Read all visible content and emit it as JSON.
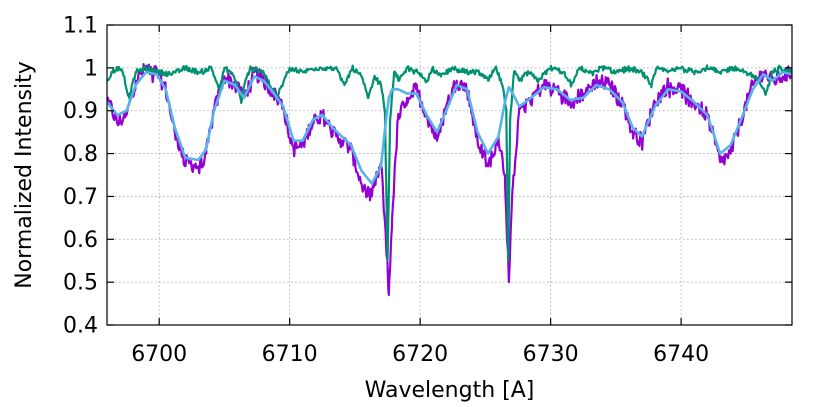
{
  "chart_data": {
    "type": "line",
    "xlabel": "Wavelength [A]",
    "ylabel": "Normalized Intensity",
    "xlim": [
      6696,
      6748.5
    ],
    "ylim": [
      0.4,
      1.1
    ],
    "x_ticks": [
      6700,
      6710,
      6720,
      6730,
      6740
    ],
    "y_ticks": [
      0.4,
      0.5,
      0.6,
      0.7,
      0.8,
      0.9,
      1,
      1.1
    ],
    "y_tick_labels": [
      "0.4",
      "0.5",
      "0.6",
      "0.7",
      "0.8",
      "0.9",
      "1",
      "1.1"
    ],
    "grid": true,
    "legend": "none",
    "series": [
      {
        "color": "#9400d3",
        "width": 2.2,
        "noise": 0.018,
        "x": [
          6696,
          6696.8,
          6697.5,
          6698.2,
          6699,
          6699.8,
          6700.5,
          6701.2,
          6702,
          6703,
          6703.6,
          6704.2,
          6705,
          6705.8,
          6706.5,
          6707.3,
          6708,
          6708.8,
          6709.5,
          6710.3,
          6711,
          6711.8,
          6712.5,
          6713.3,
          6714,
          6714.7,
          6715.5,
          6716.3,
          6717,
          6717.35,
          6717.6,
          6717.85,
          6718.3,
          6719,
          6719.7,
          6720.5,
          6721.3,
          6722,
          6722.8,
          6723.6,
          6724.4,
          6725.2,
          6726,
          6726.5,
          6726.8,
          6727.1,
          6727.6,
          6728.5,
          6729.5,
          6730.5,
          6731.5,
          6732.5,
          6733.5,
          6734.5,
          6735.5,
          6736.3,
          6737,
          6738,
          6739,
          6740,
          6741,
          6742,
          6743,
          6743.8,
          6744.6,
          6745.5,
          6746.3,
          6747,
          6747.8,
          6748.5
        ],
        "y": [
          0.93,
          0.87,
          0.89,
          0.97,
          1.0,
          0.99,
          0.95,
          0.85,
          0.78,
          0.77,
          0.8,
          0.9,
          0.98,
          0.96,
          0.93,
          0.99,
          0.97,
          0.94,
          0.91,
          0.81,
          0.82,
          0.88,
          0.89,
          0.85,
          0.83,
          0.81,
          0.73,
          0.7,
          0.78,
          0.62,
          0.47,
          0.65,
          0.88,
          0.93,
          0.95,
          0.89,
          0.83,
          0.91,
          0.97,
          0.95,
          0.83,
          0.77,
          0.84,
          0.75,
          0.5,
          0.72,
          0.91,
          0.93,
          0.96,
          0.95,
          0.92,
          0.94,
          0.97,
          0.96,
          0.92,
          0.85,
          0.83,
          0.92,
          0.96,
          0.95,
          0.92,
          0.89,
          0.78,
          0.8,
          0.88,
          0.96,
          0.99,
          0.97,
          0.98,
          0.99
        ]
      },
      {
        "color": "#009270",
        "width": 2.2,
        "noise": 0.006,
        "x": [
          6696,
          6696.4,
          6696.8,
          6697.2,
          6697.7,
          6698.2,
          6699,
          6700,
          6701,
          6702,
          6703,
          6704,
          6704.6,
          6705,
          6705.5,
          6706,
          6706.3,
          6706.6,
          6707,
          6708,
          6709,
          6710,
          6711,
          6712,
          6713.5,
          6714.2,
          6714.8,
          6715.5,
          6716,
          6716.5,
          6717,
          6717.3,
          6717.5,
          6717.7,
          6718,
          6718.4,
          6719,
          6719.8,
          6720.5,
          6721,
          6721.6,
          6722.5,
          6723.5,
          6724.5,
          6725.2,
          6725.8,
          6726.3,
          6726.6,
          6726.75,
          6726.9,
          6727.2,
          6727.6,
          6728.3,
          6729,
          6730,
          6731,
          6731.6,
          6732.2,
          6733,
          6734,
          6735,
          6736,
          6737,
          6737.7,
          6738.2,
          6739,
          6740,
          6741,
          6742,
          6743,
          6744,
          6745,
          6746,
          6746.5,
          6747,
          6747.5,
          6748,
          6748.5
        ],
        "y": [
          0.97,
          0.99,
          1.0,
          0.99,
          0.93,
          0.99,
          1.0,
          0.99,
          0.985,
          1.0,
          0.99,
          1.0,
          0.95,
          1.0,
          0.99,
          0.96,
          0.92,
          0.97,
          1.0,
          0.99,
          0.93,
          1.0,
          0.99,
          1.0,
          1.0,
          0.96,
          1.0,
          0.98,
          0.93,
          0.98,
          0.96,
          0.9,
          0.55,
          0.88,
          0.99,
          0.97,
          1.0,
          0.99,
          0.97,
          1.0,
          0.98,
          1.0,
          0.99,
          0.99,
          0.97,
          1.0,
          0.96,
          0.9,
          0.55,
          0.88,
          0.99,
          0.97,
          0.99,
          0.97,
          1.0,
          0.99,
          0.96,
          1.0,
          0.99,
          1.0,
          0.99,
          1.0,
          0.99,
          0.96,
          1.0,
          0.99,
          1.0,
          0.99,
          1.0,
          0.99,
          1.0,
          0.99,
          0.97,
          0.94,
          0.99,
          1.0,
          0.99,
          1.0
        ]
      },
      {
        "color": "#56b4e9",
        "width": 2.6,
        "noise": 0,
        "x": [
          6696,
          6696.8,
          6697.5,
          6698.2,
          6699,
          6699.8,
          6700.5,
          6701.2,
          6702,
          6703,
          6703.6,
          6704.2,
          6705,
          6705.8,
          6706.5,
          6707.3,
          6708,
          6708.8,
          6709.5,
          6710.3,
          6711,
          6711.8,
          6712.5,
          6713.3,
          6714,
          6714.7,
          6715.5,
          6716.3,
          6717,
          6717.35,
          6717.6,
          6717.85,
          6718.3,
          6719,
          6719.7,
          6720.5,
          6721.3,
          6722,
          6722.8,
          6723.6,
          6724.4,
          6725.2,
          6726,
          6726.5,
          6726.8,
          6727.1,
          6727.6,
          6728.5,
          6729.5,
          6730.5,
          6731.5,
          6732.5,
          6733.5,
          6734.5,
          6735.5,
          6736.3,
          6737,
          6738,
          6739,
          6740,
          6741,
          6742,
          6743,
          6743.8,
          6744.6,
          6745.5,
          6746.3,
          6747,
          6747.8,
          6748.5
        ],
        "y": [
          0.92,
          0.89,
          0.9,
          0.96,
          0.99,
          0.985,
          0.95,
          0.86,
          0.79,
          0.785,
          0.81,
          0.9,
          0.97,
          0.96,
          0.93,
          0.98,
          0.97,
          0.94,
          0.91,
          0.83,
          0.83,
          0.88,
          0.89,
          0.86,
          0.84,
          0.82,
          0.76,
          0.73,
          0.77,
          0.87,
          0.93,
          0.95,
          0.95,
          0.94,
          0.94,
          0.89,
          0.85,
          0.9,
          0.96,
          0.95,
          0.85,
          0.8,
          0.84,
          0.92,
          0.955,
          0.94,
          0.91,
          0.93,
          0.955,
          0.95,
          0.925,
          0.93,
          0.96,
          0.95,
          0.92,
          0.86,
          0.84,
          0.91,
          0.95,
          0.945,
          0.92,
          0.89,
          0.8,
          0.82,
          0.88,
          0.95,
          0.985,
          0.97,
          0.99,
          0.985
        ]
      }
    ]
  }
}
